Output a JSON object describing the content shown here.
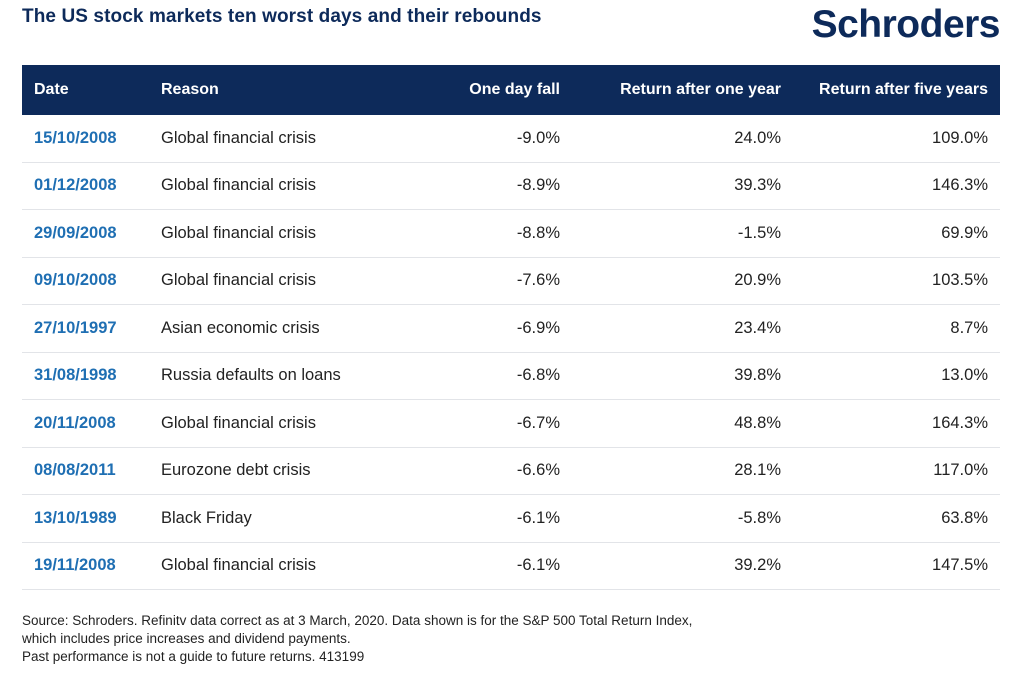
{
  "header": {
    "title": "The US stock markets ten worst days and their rebounds",
    "logo_text": "Schroders"
  },
  "table": {
    "columns": [
      "Date",
      "Reason",
      "One day fall",
      "Return after one year",
      "Return after five years"
    ],
    "rows": [
      {
        "date": "15/10/2008",
        "reason": "Global financial crisis",
        "fall": "-9.0%",
        "one_year": "24.0%",
        "five_years": "109.0%"
      },
      {
        "date": "01/12/2008",
        "reason": "Global financial crisis",
        "fall": "-8.9%",
        "one_year": "39.3%",
        "five_years": "146.3%"
      },
      {
        "date": "29/09/2008",
        "reason": "Global financial crisis",
        "fall": "-8.8%",
        "one_year": "-1.5%",
        "five_years": "69.9%"
      },
      {
        "date": "09/10/2008",
        "reason": "Global financial crisis",
        "fall": "-7.6%",
        "one_year": "20.9%",
        "five_years": "103.5%"
      },
      {
        "date": "27/10/1997",
        "reason": "Asian economic crisis",
        "fall": "-6.9%",
        "one_year": "23.4%",
        "five_years": "8.7%"
      },
      {
        "date": "31/08/1998",
        "reason": "Russia defaults on loans",
        "fall": "-6.8%",
        "one_year": "39.8%",
        "five_years": "13.0%"
      },
      {
        "date": "20/11/2008",
        "reason": "Global financial crisis",
        "fall": "-6.7%",
        "one_year": "48.8%",
        "five_years": "164.3%"
      },
      {
        "date": "08/08/2011",
        "reason": "Eurozone debt crisis",
        "fall": "-6.6%",
        "one_year": "28.1%",
        "five_years": "117.0%"
      },
      {
        "date": "13/10/1989",
        "reason": "Black Friday",
        "fall": "-6.1%",
        "one_year": "-5.8%",
        "five_years": "63.8%"
      },
      {
        "date": "19/11/2008",
        "reason": "Global financial crisis",
        "fall": "-6.1%",
        "one_year": "39.2%",
        "five_years": "147.5%"
      }
    ]
  },
  "footnote": {
    "line1": "Source: Schroders. Refinitv data correct as at 3 March, 2020. Data shown is for the S&P 500 Total Return Index,",
    "line2": "which includes price increases and dividend payments.",
    "line3": "Past performance is not a guide to future returns. 413199"
  },
  "colors": {
    "header_bg": "#0d2a5a",
    "date_text": "#1f6fb3",
    "title_text": "#0d2a5a"
  }
}
